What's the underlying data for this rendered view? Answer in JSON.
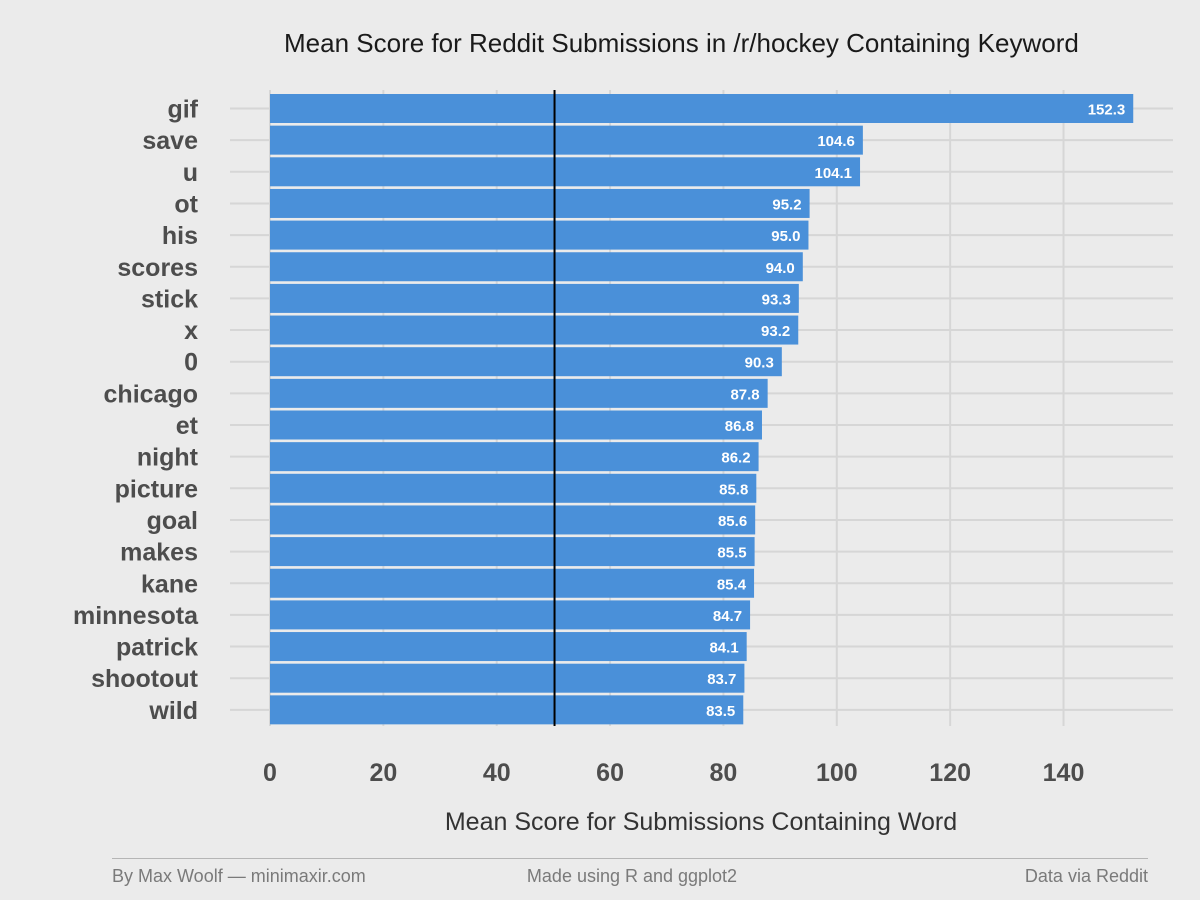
{
  "chart_data": {
    "type": "bar",
    "orientation": "horizontal",
    "title": "Mean Score for Reddit Submissions in /r/hockey Containing Keyword",
    "xlabel": "Mean Score for Submissions Containing Word",
    "ylabel": "",
    "categories": [
      "gif",
      "save",
      "u",
      "ot",
      "his",
      "scores",
      "stick",
      "x",
      "0",
      "chicago",
      "et",
      "night",
      "picture",
      "goal",
      "makes",
      "kane",
      "minnesota",
      "patrick",
      "shootout",
      "wild"
    ],
    "values": [
      152.3,
      104.6,
      104.1,
      95.2,
      95.0,
      94.0,
      93.3,
      93.2,
      90.3,
      87.8,
      86.8,
      86.2,
      85.8,
      85.6,
      85.5,
      85.4,
      84.7,
      84.1,
      83.7,
      83.5
    ],
    "value_labels": [
      "152.3",
      "104.6",
      "104.1",
      "95.2",
      "95.0",
      "94.0",
      "93.3",
      "93.2",
      "90.3",
      "87.8",
      "86.8",
      "86.2",
      "85.8",
      "85.6",
      "85.5",
      "85.4",
      "84.7",
      "84.1",
      "83.7",
      "83.5"
    ],
    "x_ticks": [
      0,
      20,
      40,
      60,
      80,
      100,
      120,
      140
    ],
    "x_tick_labels": [
      "0",
      "20",
      "40",
      "60",
      "80",
      "100",
      "120",
      "140"
    ],
    "xlim": [
      0,
      158
    ],
    "reference_line": 50.2,
    "bar_color": "#4a90d9",
    "reference_line_color": "#000000",
    "grid": true
  },
  "footer": {
    "left": "By Max Woolf — minimaxir.com",
    "center": "Made using R and ggplot2",
    "right": "Data via Reddit"
  }
}
